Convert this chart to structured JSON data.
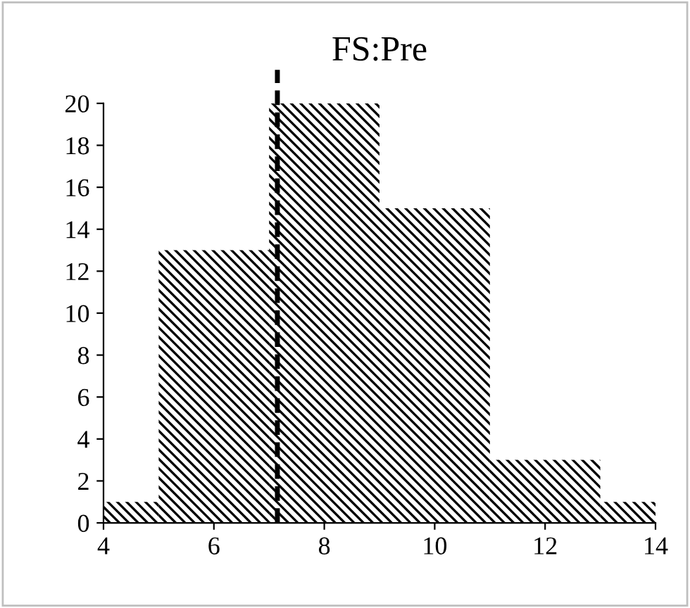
{
  "chart_data": {
    "type": "histogram",
    "title": "FS:Pre",
    "bins": [
      4,
      5,
      7,
      9,
      11,
      13,
      14
    ],
    "values": [
      1,
      13,
      20,
      15,
      3,
      1
    ],
    "color": "#000000",
    "xlim": [
      4,
      14
    ],
    "xticks": [
      4,
      6,
      8,
      10,
      12,
      14
    ],
    "ylim": [
      0,
      20
    ],
    "yticks": [
      0,
      2,
      4,
      6,
      8,
      10,
      12,
      14,
      16,
      18,
      20
    ],
    "ref_lines": [
      {
        "axis": "x",
        "value": 7.15,
        "line_style": "dashed",
        "color": "#000000"
      }
    ],
    "grid": false,
    "legend": false
  }
}
